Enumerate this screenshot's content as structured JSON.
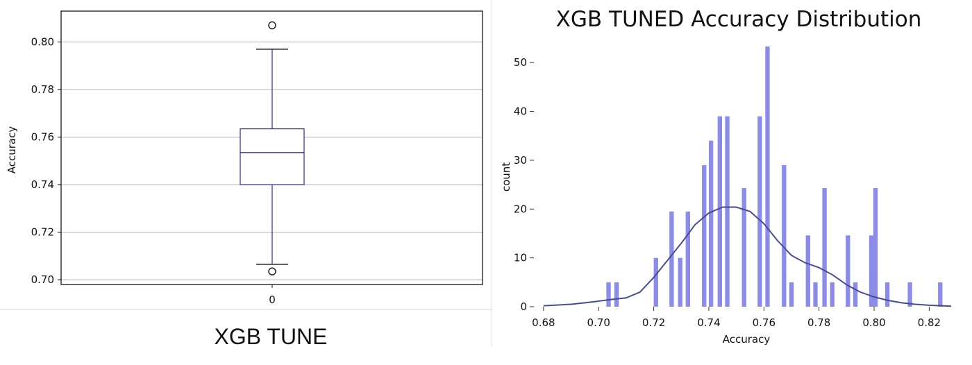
{
  "chart_data": [
    {
      "type": "box",
      "title": "",
      "caption": "XGB TUNE",
      "xlabel": "",
      "ylabel": "Accuracy",
      "categories": [
        "0"
      ],
      "ylim": [
        0.698,
        0.813
      ],
      "yticks": [
        0.7,
        0.72,
        0.74,
        0.76,
        0.78,
        0.8
      ],
      "grid": "horizontal",
      "colors": {
        "box": "#3b3b8f",
        "median": "#3b3b8f",
        "grid": "#b0b0b0"
      },
      "boxes": [
        {
          "name": "0",
          "q1": 0.74,
          "median": 0.7535,
          "q3": 0.7635,
          "whisker_low": 0.7065,
          "whisker_high": 0.797,
          "outliers": [
            0.807,
            0.7035
          ]
        }
      ]
    },
    {
      "type": "bar",
      "title": "XGB TUNED Accuracy Distribution",
      "xlabel": "Accuracy",
      "ylabel": "count",
      "xlim": [
        0.6765,
        0.8315
      ],
      "ylim": [
        0,
        55
      ],
      "xticks": [
        0.68,
        0.7,
        0.72,
        0.74,
        0.76,
        0.78,
        0.8,
        0.82
      ],
      "yticks": [
        0,
        10,
        20,
        30,
        40,
        50
      ],
      "bin_width": 0.0016,
      "colors": {
        "bars": "#8c8ce6",
        "kde": "#474d8c"
      },
      "bins": [
        {
          "x": 0.7036,
          "count": 5
        },
        {
          "x": 0.7065,
          "count": 5
        },
        {
          "x": 0.7208,
          "count": 10
        },
        {
          "x": 0.7265,
          "count": 19.5
        },
        {
          "x": 0.7296,
          "count": 10
        },
        {
          "x": 0.7324,
          "count": 19.5
        },
        {
          "x": 0.7383,
          "count": 29
        },
        {
          "x": 0.7408,
          "count": 34
        },
        {
          "x": 0.744,
          "count": 39
        },
        {
          "x": 0.7467,
          "count": 39
        },
        {
          "x": 0.7528,
          "count": 24.3
        },
        {
          "x": 0.7585,
          "count": 39
        },
        {
          "x": 0.7613,
          "count": 53.3
        },
        {
          "x": 0.7673,
          "count": 29
        },
        {
          "x": 0.77,
          "count": 5
        },
        {
          "x": 0.776,
          "count": 14.6
        },
        {
          "x": 0.7787,
          "count": 5
        },
        {
          "x": 0.782,
          "count": 24.3
        },
        {
          "x": 0.7848,
          "count": 5
        },
        {
          "x": 0.7905,
          "count": 14.6
        },
        {
          "x": 0.7932,
          "count": 5
        },
        {
          "x": 0.799,
          "count": 14.6
        },
        {
          "x": 0.8005,
          "count": 24.3
        },
        {
          "x": 0.8048,
          "count": 5
        },
        {
          "x": 0.813,
          "count": 5
        },
        {
          "x": 0.824,
          "count": 5
        }
      ],
      "kde": {
        "x": [
          0.68,
          0.69,
          0.698,
          0.705,
          0.71,
          0.715,
          0.72,
          0.725,
          0.73,
          0.735,
          0.74,
          0.745,
          0.75,
          0.755,
          0.76,
          0.765,
          0.77,
          0.775,
          0.78,
          0.785,
          0.79,
          0.795,
          0.8,
          0.805,
          0.81,
          0.815,
          0.82,
          0.828
        ],
        "y": [
          0.2,
          0.5,
          1.0,
          1.5,
          1.8,
          3.0,
          6.0,
          9.5,
          13.0,
          16.8,
          19.2,
          20.4,
          20.4,
          19.5,
          17.0,
          13.5,
          10.5,
          9.0,
          8.0,
          6.5,
          4.5,
          3.0,
          2.0,
          1.3,
          0.8,
          0.5,
          0.3,
          0.1
        ]
      }
    }
  ]
}
